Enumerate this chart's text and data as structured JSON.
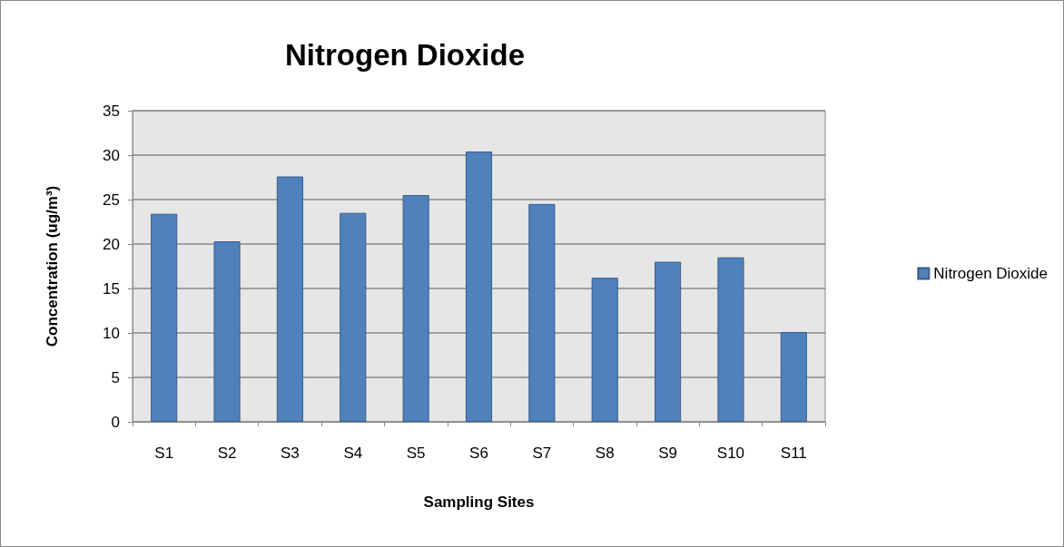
{
  "chart_data": {
    "type": "bar",
    "title": "Nitrogen Dioxide",
    "xlabel": "Sampling Sites",
    "ylabel": "Concentration (ug/m³)",
    "categories": [
      "S1",
      "S2",
      "S3",
      "S4",
      "S5",
      "S6",
      "S7",
      "S8",
      "S9",
      "S10",
      "S11"
    ],
    "series": [
      {
        "name": "Nitrogen Dioxide",
        "color": "#4f81bd",
        "values": [
          23.4,
          20.3,
          27.6,
          23.5,
          25.5,
          30.4,
          24.5,
          16.2,
          18.0,
          18.5,
          10.1
        ]
      }
    ],
    "ylim": [
      0,
      35
    ],
    "yticks": [
      0,
      5,
      10,
      15,
      20,
      25,
      30,
      35
    ],
    "grid": "y",
    "legend": "right"
  }
}
